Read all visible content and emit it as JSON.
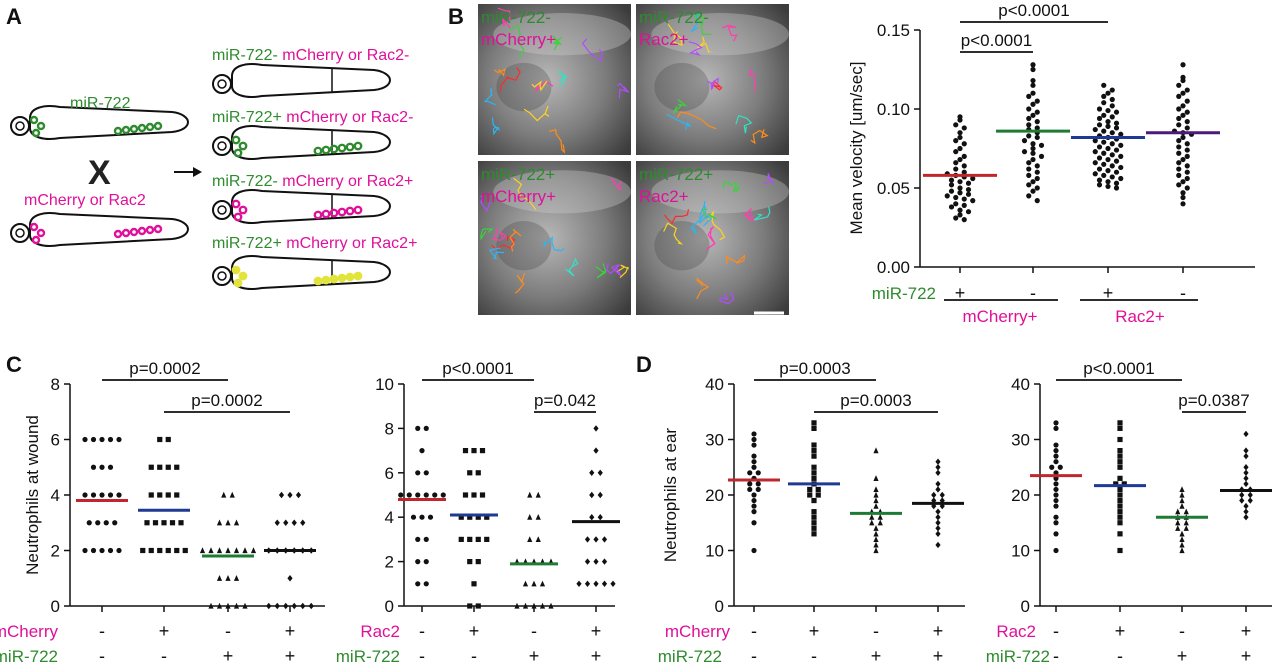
{
  "colors": {
    "red": "#c0272d",
    "blue": "#1f3a93",
    "green": "#1e7b34",
    "purple": "#4b1a7a",
    "black": "#111111",
    "pink": "#e0109a",
    "label_green": "#2e8b2e",
    "yellow": "#e2e43c"
  },
  "panelA": {
    "letter": "A",
    "parent1_label": "miR-722",
    "cross": "X",
    "parent2_label": "mCherry or Rac2",
    "offspring": [
      {
        "a": "miR-722-",
        "b": " mCherry or Rac2-"
      },
      {
        "a": "miR-722+",
        "b": " mCherry or Rac2-"
      },
      {
        "a": "miR-722-",
        "b": " mCherry or Rac2+"
      },
      {
        "a": "miR-722+",
        "b": " mCherry or Rac2+"
      }
    ]
  },
  "panelB": {
    "letter": "B",
    "images": [
      {
        "l1": "miR-722-",
        "l2": "mCherry+"
      },
      {
        "l1": "miR-722-",
        "l2": "Rac2+"
      },
      {
        "l1": "miR-722+",
        "l2": "mCherry+"
      },
      {
        "l1": "miR-722+",
        "l2": "Rac2+"
      }
    ]
  },
  "panelC": {
    "letter": "C"
  },
  "panelD": {
    "letter": "D"
  },
  "chart_data": [
    {
      "id": "velocity",
      "type": "scatter",
      "ylabel": "Mean velocity [um/sec]",
      "ylim": [
        0,
        0.15
      ],
      "yticks": [
        "0.00",
        "0.05",
        "0.10",
        "0.15"
      ],
      "row1_label": "miR-722",
      "row1": [
        "+",
        "-",
        "+",
        "-"
      ],
      "groups": [
        "mCherry+",
        "Rac2+"
      ],
      "means": [
        0.058,
        0.086,
        0.082,
        0.085
      ],
      "mean_colors": [
        "#c0272d",
        "#1e7b34",
        "#1f3a93",
        "#4b1a7a"
      ],
      "markers": [
        "circle",
        "circle",
        "circle",
        "circle"
      ],
      "series": [
        {
          "values": [
            0.095,
            0.093,
            0.09,
            0.088,
            0.085,
            0.082,
            0.08,
            0.078,
            0.075,
            0.073,
            0.07,
            0.068,
            0.066,
            0.064,
            0.062,
            0.06,
            0.059,
            0.058,
            0.057,
            0.056,
            0.055,
            0.054,
            0.053,
            0.052,
            0.05,
            0.049,
            0.048,
            0.047,
            0.046,
            0.045,
            0.044,
            0.043,
            0.042,
            0.04,
            0.039,
            0.038,
            0.036,
            0.035,
            0.033,
            0.031,
            0.03
          ]
        },
        {
          "values": [
            0.128,
            0.125,
            0.118,
            0.115,
            0.11,
            0.108,
            0.105,
            0.103,
            0.1,
            0.098,
            0.096,
            0.094,
            0.092,
            0.09,
            0.088,
            0.087,
            0.085,
            0.083,
            0.082,
            0.08,
            0.078,
            0.077,
            0.075,
            0.073,
            0.072,
            0.07,
            0.068,
            0.066,
            0.064,
            0.062,
            0.06,
            0.058,
            0.056,
            0.054,
            0.052,
            0.05,
            0.048,
            0.045,
            0.042
          ]
        },
        {
          "values": [
            0.115,
            0.112,
            0.11,
            0.108,
            0.106,
            0.104,
            0.102,
            0.1,
            0.099,
            0.098,
            0.096,
            0.095,
            0.094,
            0.092,
            0.091,
            0.09,
            0.089,
            0.088,
            0.087,
            0.086,
            0.085,
            0.084,
            0.083,
            0.082,
            0.081,
            0.08,
            0.079,
            0.078,
            0.077,
            0.076,
            0.075,
            0.074,
            0.073,
            0.072,
            0.071,
            0.07,
            0.069,
            0.068,
            0.067,
            0.066,
            0.065,
            0.064,
            0.063,
            0.062,
            0.061,
            0.06,
            0.059,
            0.058,
            0.057,
            0.056,
            0.055,
            0.054,
            0.053,
            0.052,
            0.051,
            0.05
          ]
        },
        {
          "values": [
            0.128,
            0.12,
            0.118,
            0.115,
            0.112,
            0.11,
            0.108,
            0.105,
            0.102,
            0.1,
            0.098,
            0.096,
            0.094,
            0.092,
            0.09,
            0.088,
            0.086,
            0.085,
            0.084,
            0.082,
            0.08,
            0.078,
            0.076,
            0.074,
            0.072,
            0.07,
            0.068,
            0.066,
            0.064,
            0.062,
            0.06,
            0.058,
            0.056,
            0.054,
            0.052,
            0.05,
            0.047,
            0.044,
            0.04
          ]
        }
      ],
      "brackets": [
        {
          "label": "p<0.0001",
          "from": 0,
          "to": 1
        },
        {
          "label": "p<0.0001",
          "from": 0,
          "to": 2
        }
      ]
    },
    {
      "id": "wound-mcherry",
      "type": "scatter",
      "ylabel": "Neutrophils at wound",
      "ylim": [
        0,
        8
      ],
      "yticks": [
        "0",
        "2",
        "4",
        "6",
        "8"
      ],
      "row1_label": "mCherry",
      "row1": [
        "-",
        "+",
        "-",
        "+"
      ],
      "row2_label": "miR-722",
      "row2": [
        "-",
        "-",
        "+",
        "+"
      ],
      "means": [
        3.8,
        3.45,
        1.8,
        2.0
      ],
      "mean_colors": [
        "#c0272d",
        "#1f3a93",
        "#1e7b34",
        "#111111"
      ],
      "markers": [
        "circle",
        "square",
        "triangle",
        "diamond"
      ],
      "series": [
        {
          "values": [
            6,
            6,
            6,
            6,
            6,
            5,
            5,
            5,
            4,
            4,
            4,
            4,
            4,
            3,
            3,
            3,
            3,
            2,
            2,
            2,
            2,
            2
          ]
        },
        {
          "values": [
            6,
            6,
            5,
            5,
            5,
            5,
            4,
            4,
            4,
            4,
            3,
            3,
            3,
            3,
            3,
            2,
            2,
            2,
            2,
            2,
            2
          ]
        },
        {
          "values": [
            4,
            4,
            3,
            3,
            3,
            2,
            2,
            2,
            2,
            2,
            2,
            2,
            1,
            1,
            1,
            0,
            0,
            0,
            0,
            0
          ]
        },
        {
          "values": [
            4,
            4,
            4,
            3,
            3,
            3,
            3,
            2,
            2,
            2,
            2,
            2,
            2,
            1,
            0,
            0,
            0,
            0,
            0,
            0
          ]
        }
      ],
      "brackets": [
        {
          "label": "p=0.0002",
          "from": 0,
          "to": 2
        },
        {
          "label": "p=0.0002",
          "from": 1,
          "to": 3
        }
      ]
    },
    {
      "id": "wound-rac2",
      "type": "scatter",
      "ylim": [
        0,
        10
      ],
      "yticks": [
        "0",
        "2",
        "4",
        "6",
        "8",
        "10"
      ],
      "row1_label": "Rac2",
      "row1": [
        "-",
        "+",
        "-",
        "+"
      ],
      "row2_label": "miR-722",
      "row2": [
        "-",
        "-",
        "+",
        "+"
      ],
      "means": [
        4.8,
        4.1,
        1.9,
        3.8
      ],
      "mean_colors": [
        "#c0272d",
        "#1f3a93",
        "#1e7b34",
        "#111111"
      ],
      "markers": [
        "circle",
        "square",
        "triangle",
        "diamond"
      ],
      "series": [
        {
          "values": [
            8,
            8,
            7,
            6,
            6,
            5,
            5,
            5,
            5,
            5,
            5,
            4,
            4,
            4,
            3,
            3,
            2,
            2,
            1,
            1
          ]
        },
        {
          "values": [
            7,
            7,
            7,
            6,
            6,
            5,
            5,
            5,
            4,
            4,
            4,
            4,
            3,
            3,
            3,
            3,
            2,
            2,
            1,
            0,
            0
          ]
        },
        {
          "values": [
            5,
            5,
            4,
            4,
            3,
            3,
            2,
            2,
            2,
            2,
            2,
            1,
            1,
            1,
            0,
            0,
            0,
            0,
            0
          ]
        },
        {
          "values": [
            8,
            7,
            6,
            6,
            5,
            5,
            4,
            4,
            3,
            3,
            3,
            2,
            2,
            2,
            1,
            1,
            1,
            1,
            1
          ]
        }
      ],
      "brackets": [
        {
          "label": "p<0.0001",
          "from": 0,
          "to": 2
        },
        {
          "label": "p=0.042",
          "from": 2,
          "to": 3
        }
      ]
    },
    {
      "id": "ear-mcherry",
      "type": "scatter",
      "ylabel": "Neutrophils at ear",
      "ylim": [
        0,
        40
      ],
      "yticks": [
        "0",
        "10",
        "20",
        "30",
        "40"
      ],
      "row1_label": "mCherry",
      "row1": [
        "-",
        "+",
        "-",
        "+"
      ],
      "row2_label": "miR-722",
      "row2": [
        "-",
        "-",
        "+",
        "+"
      ],
      "means": [
        22.7,
        22.0,
        16.7,
        18.5
      ],
      "mean_colors": [
        "#c0272d",
        "#1f3a93",
        "#1e7b34",
        "#111111"
      ],
      "markers": [
        "circle",
        "square",
        "triangle",
        "diamond"
      ],
      "series": [
        {
          "values": [
            31,
            30,
            29,
            27,
            26,
            25,
            24,
            24,
            23,
            22,
            22,
            21,
            21,
            20,
            19,
            18,
            17,
            15,
            10
          ]
        },
        {
          "values": [
            33,
            32,
            29,
            28,
            27,
            25,
            24,
            23,
            22,
            21,
            21,
            20,
            20,
            19,
            17,
            16,
            15,
            14,
            13
          ]
        },
        {
          "values": [
            28,
            23,
            21,
            20,
            19,
            18,
            17,
            17,
            16,
            16,
            15,
            15,
            14,
            13,
            12,
            11,
            10
          ]
        },
        {
          "values": [
            26,
            25,
            24,
            22,
            21,
            20,
            20,
            19,
            19,
            18,
            18,
            17,
            16,
            15,
            14,
            13,
            11
          ]
        }
      ],
      "brackets": [
        {
          "label": "p=0.0003",
          "from": 0,
          "to": 2
        },
        {
          "label": "p=0.0003",
          "from": 1,
          "to": 3
        }
      ]
    },
    {
      "id": "ear-rac2",
      "type": "scatter",
      "ylim": [
        0,
        40
      ],
      "yticks": [
        "0",
        "10",
        "20",
        "30",
        "40"
      ],
      "row1_label": "Rac2",
      "row1": [
        "-",
        "+",
        "-",
        "+"
      ],
      "row2_label": "miR-722",
      "row2": [
        "-",
        "-",
        "+",
        "+"
      ],
      "means": [
        23.5,
        21.7,
        16.0,
        20.8
      ],
      "mean_colors": [
        "#c0272d",
        "#1f3a93",
        "#1e7b34",
        "#111111"
      ],
      "markers": [
        "circle",
        "square",
        "triangle",
        "diamond"
      ],
      "series": [
        {
          "values": [
            33,
            32,
            29,
            28,
            27,
            26,
            25,
            25,
            24,
            23,
            22,
            21,
            20,
            19,
            18,
            16,
            15,
            13,
            10
          ]
        },
        {
          "values": [
            33,
            32,
            30,
            28,
            27,
            26,
            25,
            23,
            22,
            22,
            21,
            20,
            19,
            18,
            17,
            16,
            15,
            13,
            10
          ]
        },
        {
          "values": [
            21,
            20,
            19,
            18,
            17,
            17,
            16,
            16,
            15,
            15,
            14,
            14,
            13,
            12,
            11,
            10
          ]
        },
        {
          "values": [
            31,
            28,
            27,
            25,
            24,
            23,
            22,
            21,
            21,
            20,
            20,
            19,
            19,
            18,
            17,
            16
          ]
        }
      ],
      "brackets": [
        {
          "label": "p<0.0001",
          "from": 0,
          "to": 2
        },
        {
          "label": "p=0.0387",
          "from": 2,
          "to": 3
        }
      ]
    }
  ]
}
